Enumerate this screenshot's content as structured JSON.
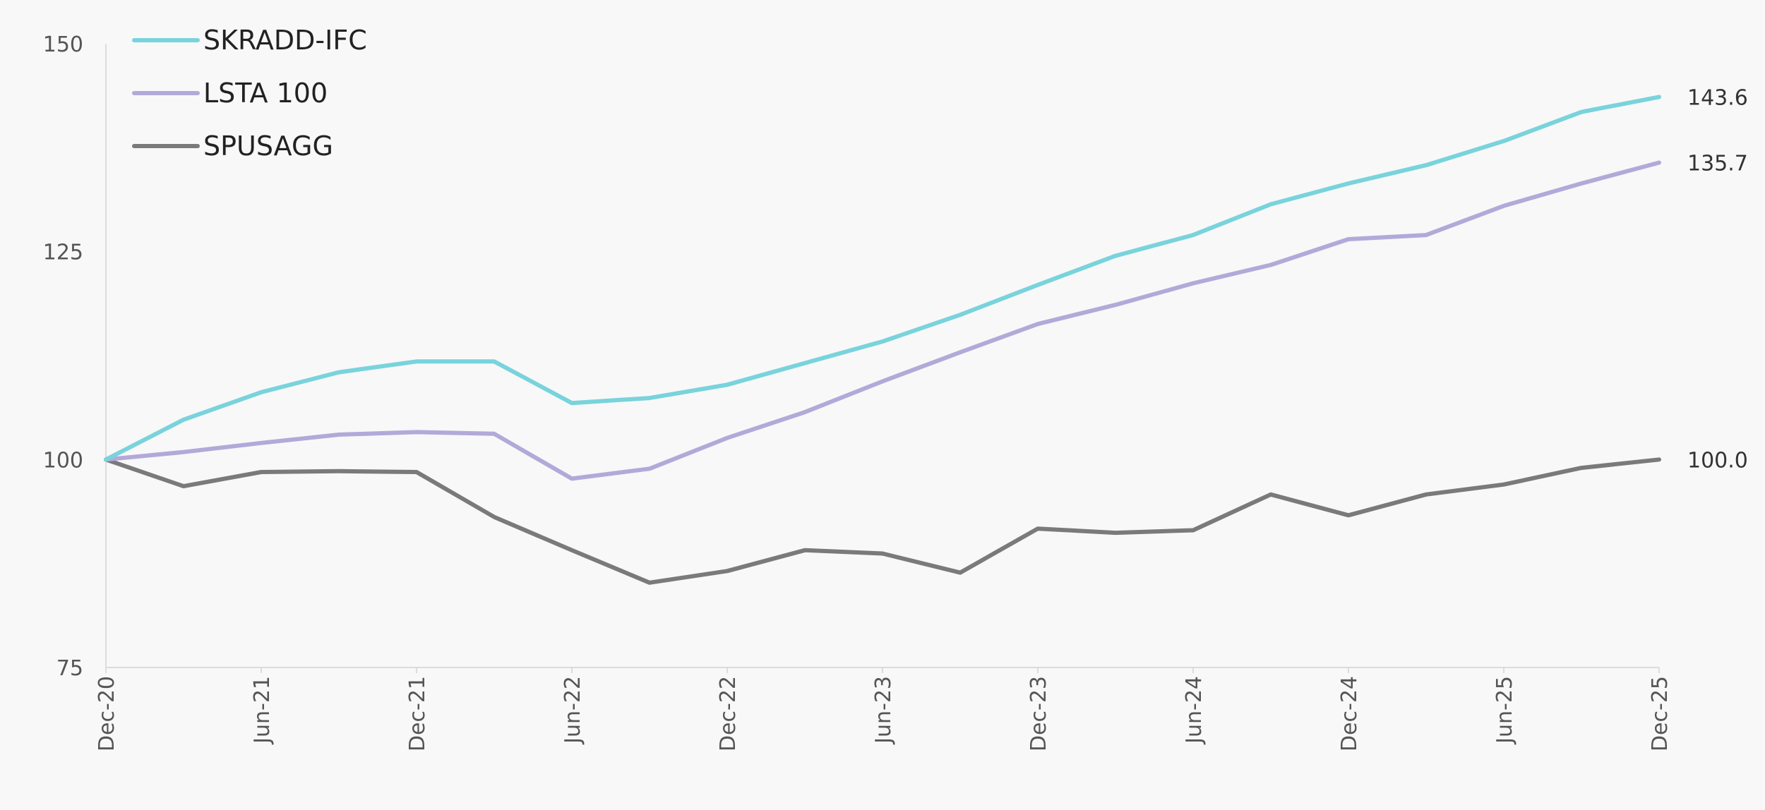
{
  "chart_data": {
    "type": "line",
    "x": [
      "Dec-20",
      "Mar-21",
      "Jun-21",
      "Sep-21",
      "Dec-21",
      "Mar-22",
      "Jun-22",
      "Sep-22",
      "Dec-22",
      "Mar-23",
      "Jun-23",
      "Sep-23",
      "Dec-23",
      "Mar-24",
      "Jun-24",
      "Sep-24",
      "Dec-24",
      "Mar-25",
      "Jun-25",
      "Sep-25",
      "Dec-25"
    ],
    "x_tick_labels": [
      "Dec-20",
      "Jun-21",
      "Dec-21",
      "Jun-22",
      "Dec-22",
      "Jun-23",
      "Dec-23",
      "Jun-24",
      "Dec-24",
      "Jun-25",
      "Dec-25"
    ],
    "ylim": [
      75,
      150
    ],
    "y_ticks": [
      75,
      100,
      125,
      150
    ],
    "grid": false,
    "legend_position": "top-left",
    "series": [
      {
        "name": "SKRADD-IFC",
        "color": "#79d3dc",
        "values": [
          100,
          104.8,
          108.1,
          110.5,
          111.8,
          111.8,
          106.8,
          107.4,
          109.0,
          111.6,
          114.2,
          117.4,
          121.0,
          124.5,
          127.0,
          130.7,
          133.2,
          135.4,
          138.3,
          141.8,
          143.6
        ],
        "end_label": "143.6"
      },
      {
        "name": "LSTA 100",
        "color": "#b3a9d9",
        "values": [
          100,
          100.9,
          102.0,
          103.0,
          103.3,
          103.1,
          97.7,
          98.9,
          102.6,
          105.7,
          109.4,
          112.9,
          116.3,
          118.6,
          121.2,
          123.4,
          126.5,
          127.0,
          130.5,
          133.2,
          135.7
        ],
        "end_label": "135.7"
      },
      {
        "name": "SPUSAGG",
        "color": "#7a7a7a",
        "values": [
          100,
          96.8,
          98.5,
          98.6,
          98.5,
          93.1,
          89.1,
          85.2,
          86.6,
          89.1,
          88.7,
          86.4,
          91.7,
          91.2,
          91.5,
          95.8,
          93.3,
          95.8,
          97.0,
          99.0,
          100.0
        ],
        "end_label": "100.0"
      }
    ]
  }
}
